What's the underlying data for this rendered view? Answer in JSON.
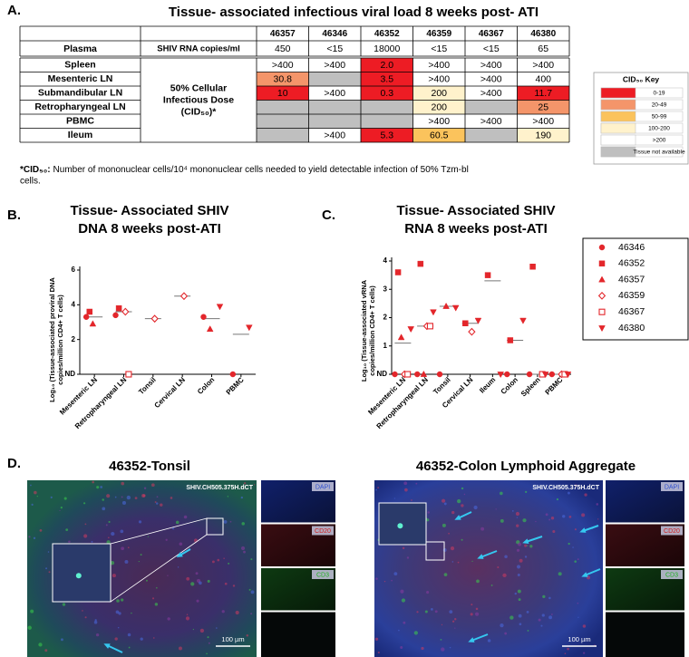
{
  "panel_a": {
    "label": "A.",
    "title": "Tissue- associated infectious viral load 8 weeks post- ATI",
    "table": {
      "header": [
        "46357",
        "46346",
        "46352",
        "46359",
        "46367",
        "46380"
      ],
      "plasma": {
        "label": "Plasma",
        "measure": "SHIV RNA copies/ml",
        "cells": [
          "450",
          "<15",
          "18000",
          "<15",
          "<15",
          "65"
        ]
      },
      "measure": [
        "50% Cellular",
        "Infectious Dose",
        "(CID₅₀)*"
      ],
      "rows": [
        {
          "tissue": "Spleen",
          "cells": [
            {
              "text": ">400"
            },
            {
              "text": ">400"
            },
            {
              "text": "2.0",
              "fill": "#ed1c24"
            },
            {
              "text": ">400"
            },
            {
              "text": ">400"
            },
            {
              "text": ">400"
            }
          ]
        },
        {
          "tissue": "Mesenteric LN",
          "cells": [
            {
              "text": "30.8",
              "fill": "#f4956a"
            },
            {
              "fill": "#bfbfbf"
            },
            {
              "text": "3.5",
              "fill": "#ed1c24"
            },
            {
              "text": ">400"
            },
            {
              "text": ">400"
            },
            {
              "text": "400"
            }
          ]
        },
        {
          "tissue": "Submandibular LN",
          "cells": [
            {
              "text": "10",
              "fill": "#ed1c24"
            },
            {
              "text": ">400"
            },
            {
              "text": "0.3",
              "fill": "#ed1c24"
            },
            {
              "text": "200",
              "fill": "#fff2cc"
            },
            {
              "text": ">400"
            },
            {
              "text": "11.7",
              "fill": "#ed1c24"
            }
          ]
        },
        {
          "tissue": "Retropharyngeal LN",
          "cells": [
            {
              "fill": "#bfbfbf"
            },
            {
              "fill": "#bfbfbf"
            },
            {
              "fill": "#bfbfbf"
            },
            {
              "text": "200",
              "fill": "#fff2cc"
            },
            {
              "fill": "#bfbfbf"
            },
            {
              "text": "25",
              "fill": "#f4956a"
            }
          ]
        },
        {
          "tissue": "PBMC",
          "cells": [
            {
              "fill": "#bfbfbf"
            },
            {
              "fill": "#bfbfbf"
            },
            {
              "fill": "#bfbfbf"
            },
            {
              "text": ">400"
            },
            {
              "text": ">400"
            },
            {
              "text": ">400"
            }
          ]
        },
        {
          "tissue": "Ileum",
          "cells": [
            {
              "fill": "#bfbfbf"
            },
            {
              "text": ">400"
            },
            {
              "text": "5.3",
              "fill": "#ed1c24"
            },
            {
              "text": "60.5",
              "fill": "#fbc35c"
            },
            {
              "fill": "#bfbfbf"
            },
            {
              "text": "190",
              "fill": "#fff2cc"
            }
          ]
        }
      ]
    },
    "key": {
      "title": "CID₅₀ Key",
      "items": [
        {
          "label": "0-19",
          "fill": "#ed1c24"
        },
        {
          "label": "20-49",
          "fill": "#f4956a"
        },
        {
          "label": "50-99",
          "fill": "#fbc35c"
        },
        {
          "label": "100-200",
          "fill": "#fff2cc"
        },
        {
          "label": ">200",
          "fill": "#ffffff"
        },
        {
          "label": "Tissue not available",
          "fill": "#bfbfbf"
        }
      ]
    },
    "footnote": {
      "bold": "*CID₅₀:",
      "lines": [
        "Number of mononuclear cells/10⁴ mononuclear cells needed to yield detectable infection of 50% Tzm-bl",
        "cells."
      ]
    }
  },
  "chart_data": [
    {
      "type": "dot",
      "label": "B.",
      "title": [
        "Tissue- Associated SHIV",
        "DNA 8 weeks post-ATI"
      ],
      "ylabel": [
        "Log₁₀ (Tissue-associated proviral DNA",
        "copies/million CD4+ T cells)"
      ],
      "categories": [
        "Mesenteric LN",
        "Retropharyngeal LN",
        "Tonsil",
        "Cervical LN",
        "Colon",
        "PBMC"
      ],
      "ylim": [
        0,
        6
      ],
      "yticks": [
        {
          "value": 0,
          "label": "ND"
        },
        2,
        4,
        6
      ],
      "means": [
        3.3,
        3.6,
        3.2,
        4.5,
        3.2,
        2.3
      ],
      "series": [
        {
          "name": "46346",
          "marker": "circle",
          "filled": true,
          "color": "#e3262b",
          "values": [
            3.3,
            3.4,
            null,
            null,
            3.3,
            0
          ]
        },
        {
          "name": "46352",
          "marker": "square",
          "filled": true,
          "color": "#e3262b",
          "values": [
            3.6,
            3.8,
            null,
            null,
            null,
            null
          ]
        },
        {
          "name": "46357",
          "marker": "triangle",
          "filled": true,
          "color": "#e3262b",
          "values": [
            2.9,
            null,
            null,
            null,
            2.6,
            null
          ]
        },
        {
          "name": "46359",
          "marker": "diamond",
          "filled": false,
          "color": "#e3262b",
          "values": [
            null,
            3.6,
            3.2,
            4.5,
            null,
            null
          ]
        },
        {
          "name": "46367",
          "marker": "square",
          "filled": false,
          "color": "#e3262b",
          "values": [
            null,
            0,
            null,
            null,
            null,
            null
          ]
        },
        {
          "name": "46380",
          "marker": "triangle-down",
          "filled": true,
          "color": "#e3262b",
          "values": [
            null,
            null,
            null,
            null,
            3.9,
            2.7
          ]
        }
      ]
    },
    {
      "type": "dot",
      "label": "C.",
      "title": [
        "Tissue- Associated SHIV",
        "RNA 8 weeks post-ATI"
      ],
      "ylabel": [
        "Log₁₀ (Tissue-associated vRNA",
        "copies/million CD4+ T cells)"
      ],
      "categories": [
        "Mesenteric LN",
        "Retropharyngeal LN",
        "Tonsil",
        "Cervical LN",
        "Ileum",
        "Colon",
        "Spleen",
        "PBMC"
      ],
      "ylim": [
        0,
        4
      ],
      "yticks": [
        {
          "value": 0,
          "label": "ND"
        },
        1,
        2,
        3,
        4
      ],
      "means": [
        1.1,
        1.7,
        2.4,
        1.8,
        3.3,
        1.2,
        0,
        0
      ],
      "series": [
        {
          "name": "46346",
          "marker": "circle",
          "filled": true,
          "color": "#e3262b",
          "values": [
            0,
            0,
            0,
            null,
            null,
            0,
            0,
            0
          ]
        },
        {
          "name": "46352",
          "marker": "square",
          "filled": true,
          "color": "#e3262b",
          "values": [
            3.6,
            3.9,
            null,
            1.8,
            3.5,
            1.2,
            3.8,
            null
          ]
        },
        {
          "name": "46357",
          "marker": "triangle",
          "filled": true,
          "color": "#e3262b",
          "values": [
            1.3,
            0,
            2.4,
            null,
            null,
            null,
            null,
            null
          ]
        },
        {
          "name": "46359",
          "marker": "diamond",
          "filled": false,
          "color": "#e3262b",
          "values": [
            0,
            1.7,
            null,
            1.5,
            null,
            null,
            null,
            0
          ]
        },
        {
          "name": "46367",
          "marker": "square",
          "filled": false,
          "color": "#e3262b",
          "values": [
            0,
            1.7,
            null,
            null,
            null,
            null,
            0,
            0
          ]
        },
        {
          "name": "46380",
          "marker": "triangle-down",
          "filled": true,
          "color": "#e3262b",
          "values": [
            1.6,
            2.2,
            2.35,
            1.9,
            0,
            1.9,
            0,
            0
          ]
        }
      ]
    }
  ],
  "panel_d": {
    "label": "D.",
    "images": [
      {
        "title": "46352-Tonsil",
        "tag": "SHIV.CH505.375H.dCT",
        "scale": "100 µm",
        "channels": [
          "DAPI",
          "CD20",
          "CD3"
        ]
      },
      {
        "title": "46352-Colon Lymphoid Aggregate",
        "tag": "SHIV.CH505.375H.dCT",
        "scale": "100 µm",
        "channels": [
          "DAPI",
          "CD20",
          "CD3"
        ]
      }
    ]
  }
}
